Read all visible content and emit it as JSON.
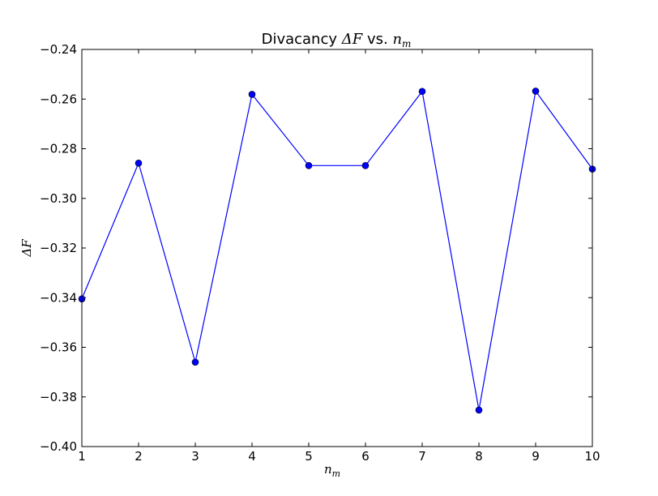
{
  "chart_data": {
    "type": "line",
    "title": {
      "prefix": "Divacancy ",
      "math1": "ΔF",
      "middle": " vs. ",
      "math2": "n",
      "math2_sub": "m"
    },
    "xlabel": {
      "main": "n",
      "sub": "m"
    },
    "ylabel": "ΔF",
    "xlim": [
      1,
      10
    ],
    "ylim": [
      -0.4,
      -0.24
    ],
    "xticks": [
      1,
      2,
      3,
      4,
      5,
      6,
      7,
      8,
      9,
      10
    ],
    "yticks": [
      -0.4,
      -0.38,
      -0.36,
      -0.34,
      -0.32,
      -0.3,
      -0.28,
      -0.26,
      -0.24
    ],
    "grid": false,
    "series": [
      {
        "color": "#0000ff",
        "x": [
          1,
          2,
          3,
          4,
          5,
          6,
          7,
          8,
          9,
          10
        ],
        "y": [
          -0.3405,
          -0.2858,
          -0.366,
          -0.2581,
          -0.2868,
          -0.2868,
          -0.2569,
          -0.3853,
          -0.2568,
          -0.2882
        ]
      }
    ]
  }
}
